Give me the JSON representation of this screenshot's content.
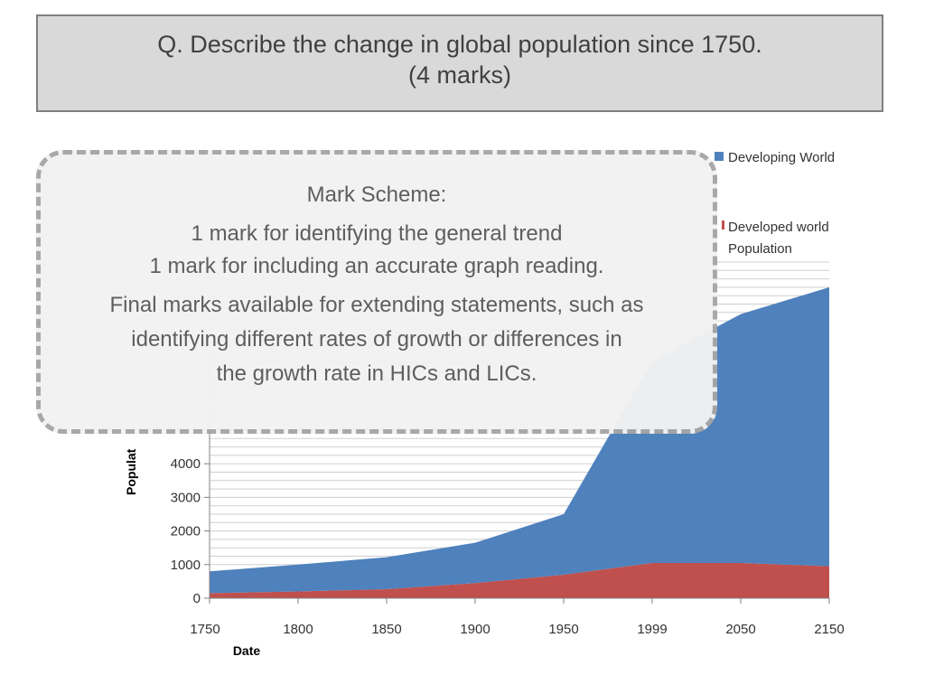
{
  "question": {
    "line1": "Q. Describe the change in global population since 1750.",
    "line2": "(4 marks)"
  },
  "mark_scheme": {
    "title": "Mark Scheme:",
    "line1": "1 mark for identifying the general trend",
    "line2": "1 mark for including an accurate graph reading.",
    "line3": "Final marks available for extending statements, such as",
    "line4": "identifying different rates of growth or differences in",
    "line5": "the  growth rate in HICs and LICs."
  },
  "chart_data": {
    "type": "area",
    "stacked": true,
    "x": [
      1750,
      1800,
      1850,
      1900,
      1950,
      1999,
      2050,
      2150
    ],
    "x_tick_labels": [
      "1750",
      "1800",
      "1850",
      "1900",
      "1950",
      "1999",
      "2050",
      "2150"
    ],
    "series": [
      {
        "name": "Developed world Population",
        "color": "#c0504d",
        "values": [
          150,
          200,
          270,
          450,
          700,
          1050,
          1050,
          950
        ]
      },
      {
        "name": "Developing World",
        "color": "#4f81bd",
        "values": [
          650,
          800,
          950,
          1200,
          1800,
          6000,
          7400,
          8300
        ]
      }
    ],
    "xlabel": "Date",
    "ylabel": "Populat",
    "y_tick_labels": [
      "0",
      "1000",
      "2000",
      "3000",
      "4000"
    ],
    "y_ticks": [
      0,
      1000,
      2000,
      3000,
      4000
    ],
    "ylim": [
      0,
      10000
    ],
    "grid": true,
    "legend_position": "top-right"
  }
}
